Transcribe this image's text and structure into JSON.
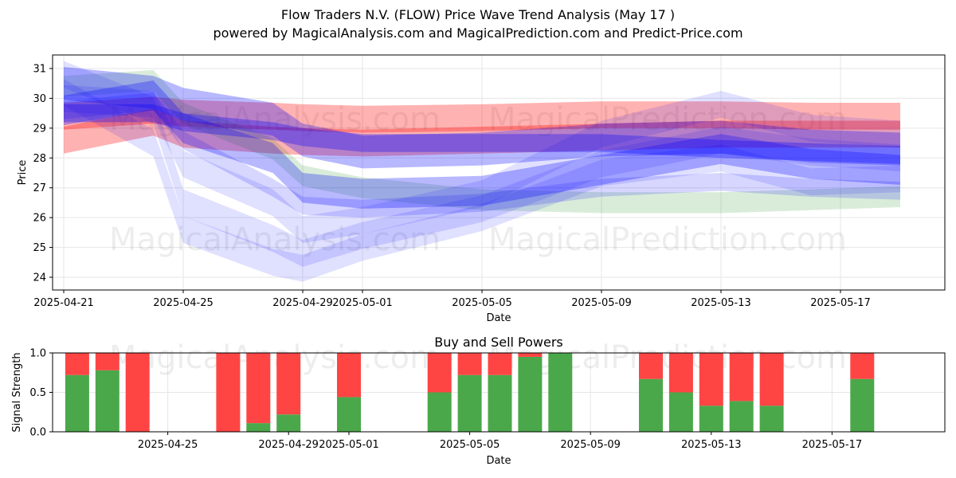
{
  "title_line1": "Flow Traders N.V. (FLOW) Price Wave Trend Analysis (May 17 )",
  "title_line2": "powered by MagicalAnalysis.com and MagicalPrediction.com and Predict-Price.com",
  "watermarks": [
    "MagicalAnalysis.com",
    "MagicalPrediction.com"
  ],
  "chart_data": [
    {
      "type": "area",
      "title": "",
      "xlabel": "Date",
      "ylabel": "Price",
      "x_ticks": [
        "2025-04-21",
        "2025-04-25",
        "2025-04-29",
        "2025-05-01",
        "2025-05-05",
        "2025-05-09",
        "2025-05-13",
        "2025-05-17"
      ],
      "x_range": [
        "2025-04-20",
        "2025-05-20"
      ],
      "y_ticks": [
        24,
        25,
        26,
        27,
        28,
        29,
        30,
        31
      ],
      "ylim": [
        23.6,
        31.45
      ],
      "grid": true,
      "bands_x": [
        "2025-04-21",
        "2025-04-24",
        "2025-04-25",
        "2025-04-28",
        "2025-04-29",
        "2025-05-01",
        "2025-05-05",
        "2025-05-09",
        "2025-05-13",
        "2025-05-16",
        "2025-05-19"
      ],
      "series": [
        {
          "color": "#ff0000",
          "center": [
            28.6,
            29.2,
            28.8,
            28.6,
            28.55,
            28.5,
            28.6,
            28.7,
            28.8,
            28.8,
            28.8
          ],
          "width": 0.9,
          "alpha": 0.3
        },
        {
          "color": "#ff0000",
          "center": [
            29.4,
            29.6,
            29.5,
            29.4,
            29.35,
            29.3,
            29.35,
            29.45,
            29.45,
            29.4,
            29.4
          ],
          "width": 0.9,
          "alpha": 0.3
        },
        {
          "color": "#008000",
          "center": [
            30.4,
            30.6,
            29.5,
            28.3,
            27.4,
            27.0,
            26.6,
            26.5,
            26.5,
            26.6,
            26.7
          ],
          "width": 0.7,
          "alpha": 0.15
        },
        {
          "color": "#0000ff",
          "center": [
            29.6,
            30.1,
            29.0,
            28.0,
            27.0,
            26.8,
            26.9,
            27.6,
            28.3,
            27.8,
            27.6
          ],
          "width": 1.0,
          "alpha": 0.28
        },
        {
          "color": "#0000ff",
          "center": [
            30.5,
            30.2,
            29.8,
            29.3,
            28.6,
            28.2,
            28.3,
            28.6,
            28.7,
            28.4,
            28.3
          ],
          "width": 1.1,
          "alpha": 0.28
        },
        {
          "color": "#0000ff",
          "center": [
            30.8,
            29.6,
            26.5,
            25.3,
            24.8,
            25.4,
            26.3,
            27.8,
            28.6,
            28.2,
            28.0
          ],
          "width": 0.9,
          "alpha": 0.12
        },
        {
          "color": "#0000ff",
          "center": [
            30.2,
            28.5,
            25.6,
            24.5,
            24.3,
            25.0,
            26.0,
            27.5,
            28.0,
            27.2,
            27.3
          ],
          "width": 0.9,
          "alpha": 0.12
        },
        {
          "color": "#0000ff",
          "center": [
            30.0,
            29.8,
            27.8,
            26.5,
            25.6,
            25.9,
            26.8,
            28.8,
            29.8,
            29.0,
            28.8
          ],
          "width": 0.9,
          "alpha": 0.12
        },
        {
          "color": "#0000ff",
          "center": [
            29.6,
            29.9,
            28.6,
            27.0,
            26.4,
            26.3,
            26.5,
            27.0,
            27.2,
            27.0,
            26.9
          ],
          "width": 0.6,
          "alpha": 0.16
        },
        {
          "color": "#0000ff",
          "center": [
            29.5,
            29.5,
            29.2,
            28.9,
            28.7,
            28.5,
            28.5,
            28.5,
            28.3,
            28.2,
            28.1
          ],
          "width": 0.6,
          "alpha": 0.3
        }
      ]
    },
    {
      "type": "bar",
      "title": "Buy and Sell Powers",
      "xlabel": "Date",
      "ylabel": "Signal Strength",
      "ylim": [
        0,
        1
      ],
      "y_ticks": [
        "0.0",
        "0.5",
        "1.0"
      ],
      "x_ticks": [
        "2025-04-25",
        "2025-04-29",
        "2025-05-01",
        "2025-05-05",
        "2025-05-09",
        "2025-05-13",
        "2025-05-17"
      ],
      "grid": true,
      "colors": {
        "buy": "#4aa84a",
        "sell": "#ff4444"
      },
      "categories": [
        "2025-04-22",
        "2025-04-23",
        "2025-04-24",
        "2025-04-27",
        "2025-04-28",
        "2025-04-29",
        "2025-05-01",
        "2025-05-04",
        "2025-05-05",
        "2025-05-06",
        "2025-05-07",
        "2025-05-08",
        "2025-05-11",
        "2025-05-12",
        "2025-05-13",
        "2025-05-14",
        "2025-05-15",
        "2025-05-18"
      ],
      "series": [
        {
          "values": [
            0.72,
            0.78,
            0.0,
            0.0,
            0.11,
            0.22,
            0.44,
            0.5,
            0.72,
            0.72,
            0.95,
            1.0,
            0.67,
            0.5,
            0.33,
            0.39,
            0.33,
            0.67
          ]
        },
        {
          "values": [
            0.28,
            0.22,
            1.0,
            1.0,
            0.89,
            0.78,
            0.56,
            0.5,
            0.28,
            0.28,
            0.05,
            0.0,
            0.33,
            0.5,
            0.67,
            0.61,
            0.67,
            0.33
          ]
        }
      ]
    }
  ]
}
